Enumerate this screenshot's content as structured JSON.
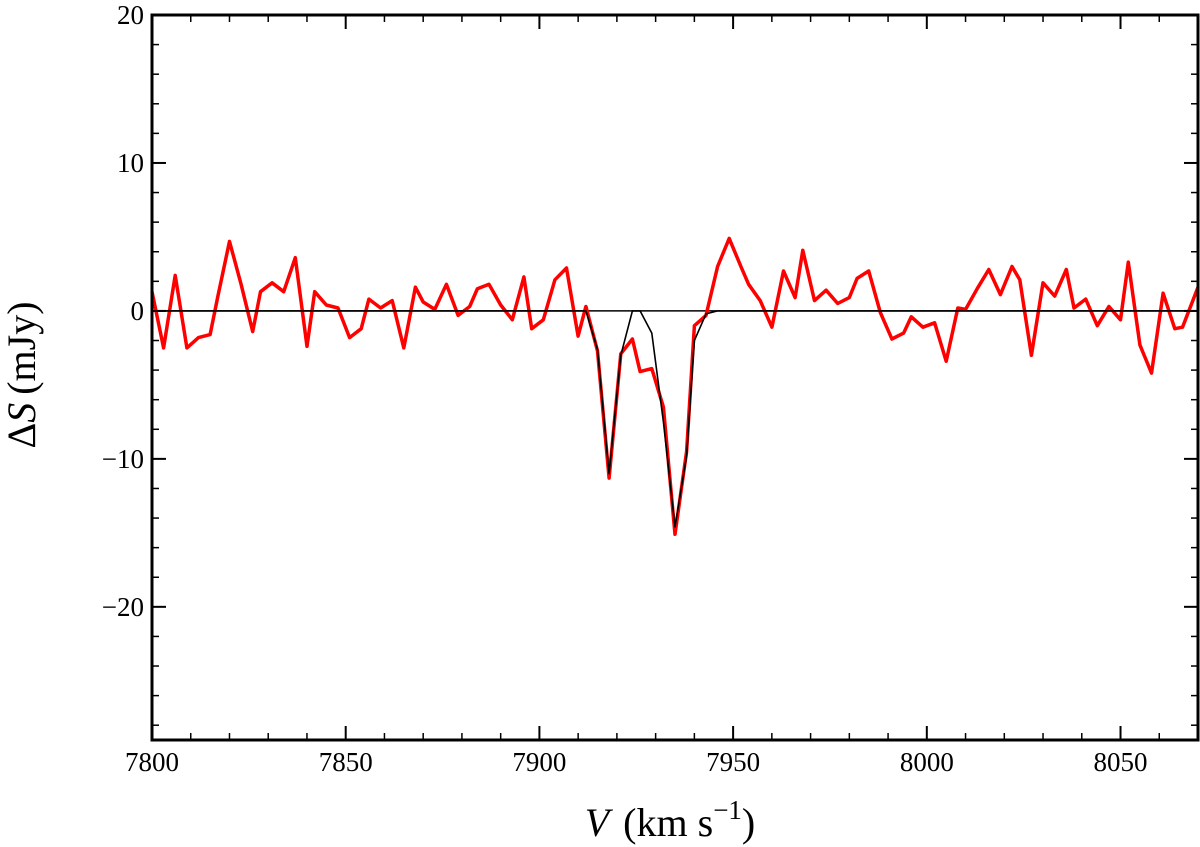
{
  "chart_data": {
    "type": "line",
    "title": "",
    "xlabel": {
      "var": "V",
      "unit": "km s",
      "exp": "−1"
    },
    "ylabel": {
      "prefix": "Δ",
      "var": "S",
      "unit": "(mJy)"
    },
    "xlim": [
      7800,
      8070
    ],
    "ylim": [
      -29,
      20
    ],
    "xticks": [
      7800,
      7850,
      7900,
      7950,
      8000,
      8050
    ],
    "yticks": [
      -20,
      -10,
      0,
      10,
      20
    ],
    "yticks_minor_step": 2,
    "xticks_minor_step": 10,
    "zero_line": 0,
    "grid": false,
    "colors": {
      "data": "#ff0000",
      "model": "#000000",
      "axes": "#000000"
    },
    "series": [
      {
        "x": [
          7800,
          7803,
          7806,
          7809,
          7812,
          7815,
          7817,
          7820,
          7823,
          7826,
          7828,
          7831,
          7834,
          7837,
          7840,
          7842,
          7845,
          7848,
          7851,
          7854,
          7856,
          7859,
          7862,
          7865,
          7868,
          7870,
          7873,
          7876,
          7879,
          7882,
          7884,
          7887,
          7890,
          7893,
          7896,
          7898,
          7901,
          7904,
          7907,
          7910,
          7912,
          7915,
          7918,
          7921,
          7924,
          7926,
          7929,
          7932,
          7935,
          7938,
          7940,
          7943,
          7946,
          7949,
          7952,
          7954,
          7957,
          7960,
          7963,
          7966,
          7968,
          7971,
          7974,
          7977,
          7980,
          7982,
          7985,
          7988,
          7991,
          7994,
          7996,
          7999,
          8002,
          8005,
          8008,
          8010,
          8013,
          8016,
          8019,
          8022,
          8024,
          8027,
          8030,
          8033,
          8036,
          8038,
          8041,
          8044,
          8047,
          8050,
          8052,
          8055,
          8058,
          8061,
          8064,
          8066,
          8070
        ],
        "values": [
          1.3,
          -2.5,
          2.4,
          -2.5,
          -1.8,
          -1.6,
          1.0,
          4.7,
          1.8,
          -1.4,
          1.3,
          1.9,
          1.3,
          3.6,
          -2.4,
          1.3,
          0.4,
          0.2,
          -1.8,
          -1.2,
          0.8,
          0.2,
          0.7,
          -2.5,
          1.6,
          0.6,
          0.1,
          1.8,
          -0.3,
          0.3,
          1.5,
          1.8,
          0.4,
          -0.6,
          2.3,
          -1.2,
          -0.6,
          2.1,
          2.9,
          -1.7,
          0.3,
          -2.7,
          -11.3,
          -2.9,
          -1.9,
          -4.1,
          -3.9,
          -6.5,
          -15.1,
          -9.5,
          -1.0,
          -0.3,
          3.0,
          4.9,
          3.0,
          1.8,
          0.7,
          -1.1,
          2.7,
          0.9,
          4.1,
          0.7,
          1.4,
          0.5,
          0.9,
          2.2,
          2.7,
          -0.1,
          -1.9,
          -1.5,
          -0.4,
          -1.1,
          -0.8,
          -3.4,
          0.2,
          0.1,
          1.5,
          2.8,
          1.1,
          3.0,
          2.1,
          -3.0,
          1.9,
          1.0,
          2.8,
          0.2,
          0.8,
          -1.0,
          0.3,
          -0.6,
          3.3,
          -2.3,
          -4.2,
          1.2,
          -1.2,
          -1.1,
          1.6
        ]
      },
      {
        "x": [
          7800,
          7912,
          7915,
          7918,
          7921,
          7924,
          7926,
          7929,
          7932,
          7935,
          7938,
          7940,
          7943,
          7946,
          8070
        ],
        "values": [
          0,
          0,
          -2.6,
          -11.0,
          -3.0,
          0.0,
          0.0,
          -1.5,
          -7.5,
          -14.6,
          -9.8,
          -2.0,
          -0.2,
          0,
          0
        ]
      }
    ]
  }
}
